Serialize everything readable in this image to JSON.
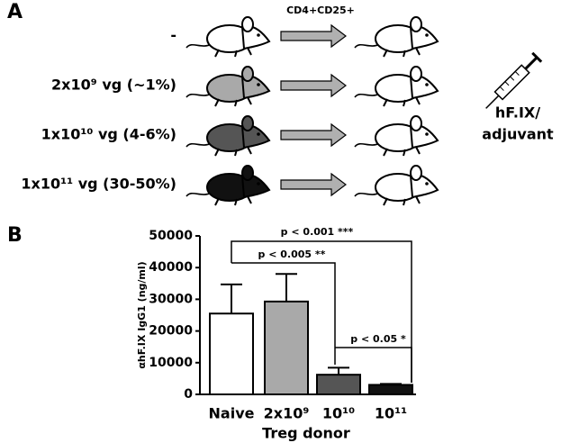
{
  "panel_a": {
    "label": "A",
    "transfer_label": "CD4+CD25+",
    "donors": [
      "-",
      "2x10⁹ vg (~1%)",
      "1x10¹⁰ vg (4-6%)",
      "1x10¹¹ vg (30-50%)"
    ],
    "injection_label": [
      "hF.IX/",
      "adjuvant"
    ]
  },
  "chart_data": {
    "type": "bar",
    "panel_label": "B",
    "y_label": "αhF.IX IgG1 (ng/ml)",
    "x_label": "Treg donor",
    "categories": [
      "Naive",
      "2x10⁹",
      "10¹⁰",
      "10¹¹"
    ],
    "values": [
      25500,
      29300,
      6200,
      3000
    ],
    "errors": [
      9200,
      8700,
      2200,
      300
    ],
    "colors": [
      "#ffffff",
      "#a9a9a9",
      "#555555",
      "#111111"
    ],
    "ylim": [
      0,
      50000
    ],
    "yticks": [
      0,
      10000,
      20000,
      30000,
      40000,
      50000
    ],
    "annotations": [
      "p < 0.001 ***",
      "p < 0.005 **",
      "p < 0.05 *"
    ]
  }
}
